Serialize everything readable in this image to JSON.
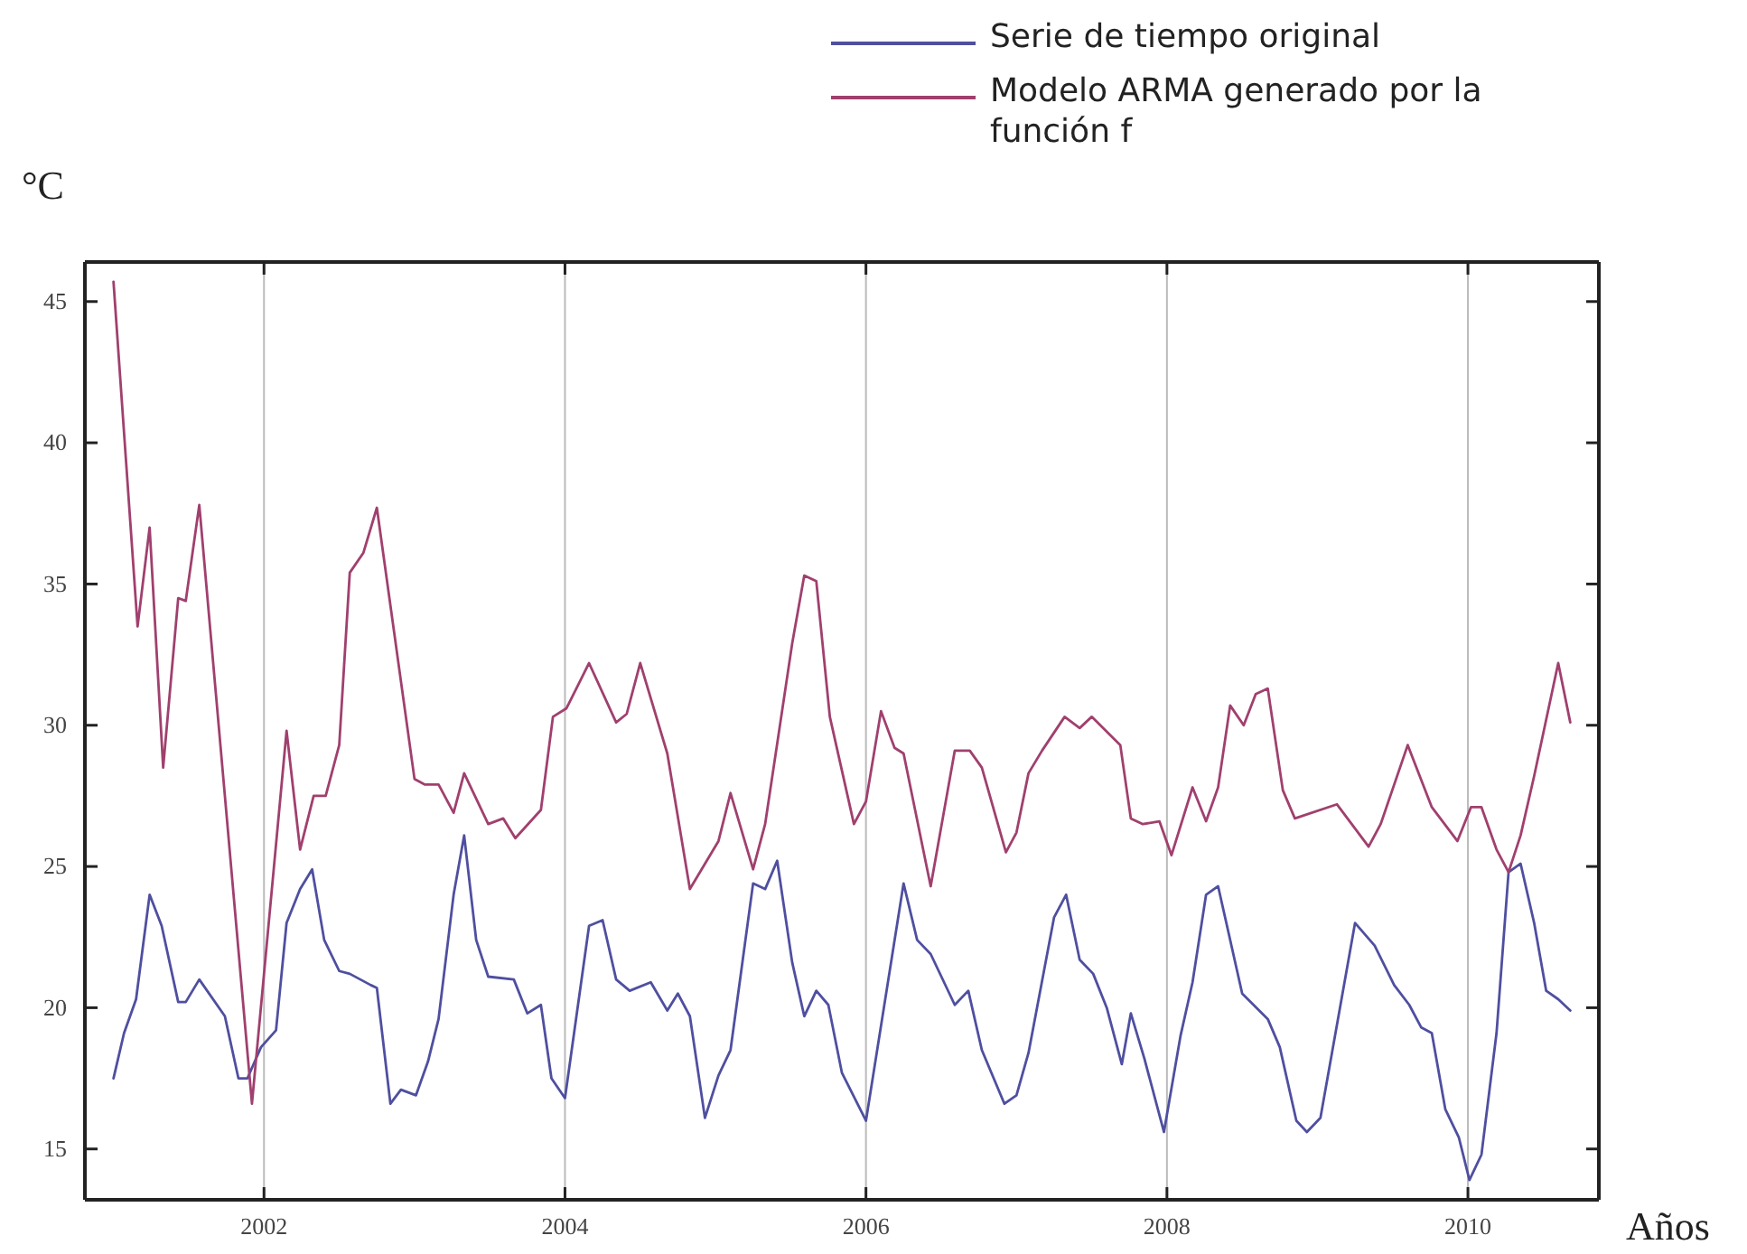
{
  "chart_data": {
    "type": "line",
    "xlabel": "Años",
    "ylabel": "°C",
    "xlim": [
      2000.81,
      2010.87
    ],
    "ylim": [
      13.2,
      46.4
    ],
    "xticks": [
      2002,
      2004,
      2006,
      2008,
      2010
    ],
    "yticks": [
      15,
      20,
      25,
      30,
      35,
      40,
      45
    ],
    "grid": "x",
    "legend": "top right",
    "line_style": "solid",
    "marker": "none",
    "series": [
      {
        "name": "Serie de tiempo original",
        "color": "#4f4fa0",
        "x": [
          2001.0,
          2001.07,
          2001.15,
          2001.24,
          2001.32,
          2001.43,
          2001.48,
          2001.57,
          2001.74,
          2001.83,
          2001.89,
          2001.98,
          2002.08,
          2002.15,
          2002.24,
          2002.32,
          2002.4,
          2002.5,
          2002.57,
          2002.71,
          2002.75,
          2002.84,
          2002.91,
          2003.01,
          2003.09,
          2003.16,
          2003.26,
          2003.33,
          2003.41,
          2003.49,
          2003.66,
          2003.75,
          2003.84,
          2003.91,
          2004.0,
          2004.16,
          2004.25,
          2004.34,
          2004.43,
          2004.57,
          2004.68,
          2004.75,
          2004.83,
          2004.93,
          2005.02,
          2005.1,
          2005.25,
          2005.33,
          2005.41,
          2005.51,
          2005.59,
          2005.67,
          2005.75,
          2005.84,
          2006.0,
          2006.25,
          2006.34,
          2006.43,
          2006.59,
          2006.68,
          2006.77,
          2006.92,
          2007.0,
          2007.08,
          2007.25,
          2007.33,
          2007.42,
          2007.51,
          2007.6,
          2007.7,
          2007.76,
          2007.85,
          2007.98,
          2008.09,
          2008.17,
          2008.26,
          2008.34,
          2008.5,
          2008.67,
          2008.75,
          2008.86,
          2008.93,
          2009.02,
          2009.25,
          2009.38,
          2009.51,
          2009.61,
          2009.69,
          2009.76,
          2009.85,
          2009.94,
          2010.01,
          2010.09,
          2010.19,
          2010.27,
          2010.35,
          2010.44,
          2010.52,
          2010.6,
          2010.68
        ],
        "values": [
          17.5,
          19.1,
          20.3,
          24.0,
          22.9,
          20.2,
          20.2,
          21.0,
          19.7,
          17.5,
          17.5,
          18.6,
          19.2,
          23.0,
          24.2,
          24.9,
          22.4,
          21.3,
          21.2,
          20.8,
          20.7,
          16.6,
          17.1,
          16.9,
          18.1,
          19.6,
          24.0,
          26.1,
          22.4,
          21.1,
          21.0,
          19.8,
          20.1,
          17.5,
          16.8,
          22.9,
          23.1,
          21.0,
          20.6,
          20.9,
          19.9,
          20.5,
          19.7,
          16.1,
          17.6,
          18.5,
          24.4,
          24.2,
          25.2,
          21.6,
          19.7,
          20.6,
          20.1,
          17.7,
          16.0,
          24.4,
          22.4,
          21.9,
          20.1,
          20.6,
          18.5,
          16.6,
          16.9,
          18.4,
          23.2,
          24.0,
          21.7,
          21.2,
          20.0,
          18.0,
          19.8,
          18.2,
          15.6,
          19.0,
          20.9,
          24.0,
          24.3,
          20.5,
          19.6,
          18.6,
          16.0,
          15.6,
          16.1,
          23.0,
          22.2,
          20.8,
          20.1,
          19.3,
          19.1,
          16.4,
          15.4,
          13.9,
          14.8,
          19.1,
          24.8,
          25.1,
          23.0,
          20.6,
          20.3,
          19.9
        ]
      },
      {
        "name": "Modelo ARMA generado por la función f",
        "color": "#a0406e",
        "x": [
          2001.0,
          2001.16,
          2001.24,
          2001.33,
          2001.43,
          2001.48,
          2001.57,
          2001.92,
          2002.15,
          2002.24,
          2002.33,
          2002.41,
          2002.5,
          2002.57,
          2002.66,
          2002.75,
          2003.0,
          2003.07,
          2003.16,
          2003.26,
          2003.33,
          2003.49,
          2003.59,
          2003.67,
          2003.84,
          2003.92,
          2004.01,
          2004.16,
          2004.34,
          2004.41,
          2004.5,
          2004.68,
          2004.83,
          2005.02,
          2005.1,
          2005.25,
          2005.33,
          2005.51,
          2005.59,
          2005.67,
          2005.76,
          2005.92,
          2006.0,
          2006.1,
          2006.19,
          2006.25,
          2006.43,
          2006.59,
          2006.69,
          2006.77,
          2006.93,
          2007.0,
          2007.08,
          2007.17,
          2007.32,
          2007.42,
          2007.5,
          2007.69,
          2007.76,
          2007.84,
          2007.95,
          2008.03,
          2008.17,
          2008.26,
          2008.34,
          2008.42,
          2008.51,
          2008.59,
          2008.67,
          2008.77,
          2008.85,
          2009.13,
          2009.34,
          2009.42,
          2009.6,
          2009.76,
          2009.93,
          2010.02,
          2010.09,
          2010.19,
          2010.27,
          2010.35,
          2010.44,
          2010.6,
          2010.68
        ],
        "values": [
          45.7,
          33.5,
          37.0,
          28.5,
          34.5,
          34.4,
          37.8,
          16.6,
          29.8,
          25.6,
          27.5,
          27.5,
          29.3,
          35.4,
          36.1,
          37.7,
          28.1,
          27.9,
          27.9,
          26.9,
          28.3,
          26.5,
          26.7,
          26.0,
          27.0,
          30.3,
          30.6,
          32.2,
          30.1,
          30.4,
          32.2,
          29.0,
          24.2,
          25.9,
          27.6,
          24.9,
          26.5,
          32.9,
          35.3,
          35.1,
          30.3,
          26.5,
          27.3,
          30.5,
          29.2,
          29.0,
          24.3,
          29.1,
          29.1,
          28.5,
          25.5,
          26.2,
          28.3,
          29.1,
          30.3,
          29.9,
          30.3,
          29.3,
          26.7,
          26.5,
          26.6,
          25.4,
          27.8,
          26.6,
          27.8,
          30.7,
          30.0,
          31.1,
          31.3,
          27.7,
          26.7,
          27.2,
          25.7,
          26.5,
          29.3,
          27.1,
          25.9,
          27.1,
          27.1,
          25.6,
          24.8,
          26.1,
          28.2,
          32.2,
          30.1
        ]
      }
    ]
  }
}
